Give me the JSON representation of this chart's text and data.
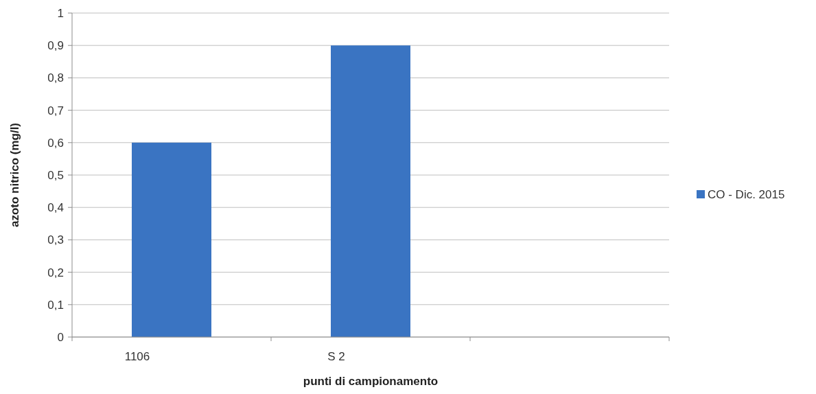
{
  "chart_data": {
    "type": "bar",
    "xlabel": "punti di campionamento",
    "ylabel": "azoto nitrico (mg/l)",
    "categories": [
      "1106",
      "S 2",
      null
    ],
    "series": [
      {
        "name": "CO - Dic. 2015",
        "color": "#3a74c2",
        "values": [
          0.6,
          0.9,
          null
        ]
      }
    ],
    "ylim": [
      0,
      1
    ],
    "yticks": [
      0,
      {
        "value": 0.1,
        "label": "0,1"
      },
      {
        "value": 0.2,
        "label": "0,2"
      },
      {
        "value": 0.3,
        "label": "0,3"
      },
      {
        "value": 0.4,
        "label": "0,4"
      },
      {
        "value": 0.5,
        "label": "0,5"
      },
      {
        "value": 0.6,
        "label": "0,6"
      },
      {
        "value": 0.7,
        "label": "0,7"
      },
      {
        "value": 0.8,
        "label": "0,8"
      },
      {
        "value": 0.9,
        "label": "0,9"
      },
      1
    ],
    "grid": "y",
    "legend": "right"
  }
}
